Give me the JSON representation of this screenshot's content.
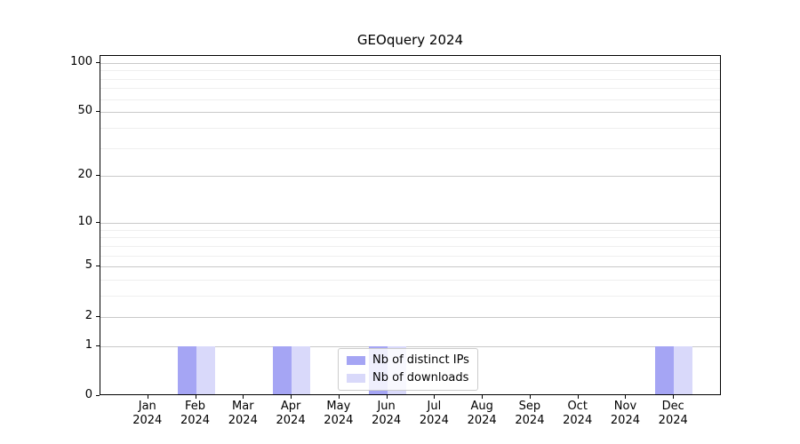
{
  "chart_data": {
    "type": "bar",
    "title": "GEOquery 2024",
    "categories": [
      "Jan 2024",
      "Feb 2024",
      "Mar 2024",
      "Apr 2024",
      "May 2024",
      "Jun 2024",
      "Jul 2024",
      "Aug 2024",
      "Sep 2024",
      "Oct 2024",
      "Nov 2024",
      "Dec 2024"
    ],
    "series": [
      {
        "name": "Nb of distinct IPs",
        "color": "#a5a5f4",
        "values": [
          0,
          1,
          0,
          1,
          0,
          1,
          0,
          0,
          0,
          0,
          0,
          1
        ]
      },
      {
        "name": "Nb of downloads",
        "color": "#d9d9fa",
        "values": [
          0,
          1,
          0,
          1,
          0,
          1,
          0,
          0,
          0,
          0,
          0,
          1
        ]
      }
    ],
    "xlabel": "",
    "ylabel": "",
    "y_scale": "log1p",
    "ylim": [
      0,
      110
    ],
    "y_major_ticks": [
      0,
      1,
      2,
      5,
      10,
      20,
      50,
      100
    ],
    "y_minor_gridlines": [
      3,
      4,
      6,
      7,
      8,
      9,
      30,
      40,
      60,
      70,
      80,
      90
    ],
    "grid": "horizontal",
    "legend_position": "inside-bottom-center",
    "colors": {
      "major_grid": "#c9c9c9",
      "minor_grid": "#efefef",
      "axis": "#000000",
      "background": "#ffffff"
    }
  }
}
